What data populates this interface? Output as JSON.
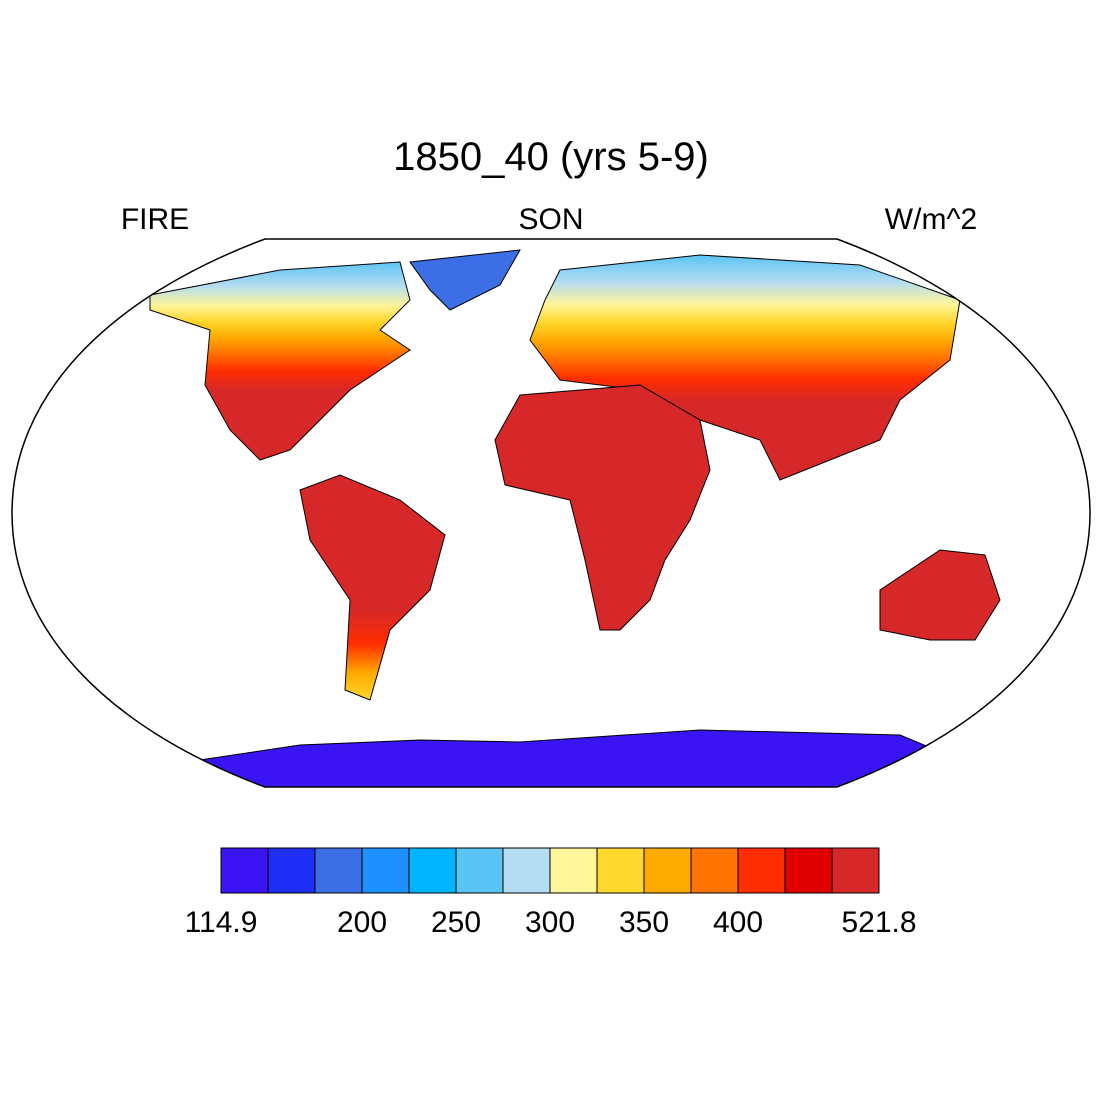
{
  "map": {
    "title": "1850_40 (yrs 5-9)",
    "left_label": "FIRE",
    "center_label": "SON",
    "right_label": "W/m^2",
    "colorbar": {
      "colors": [
        "#3a14f2",
        "#1e2ef2",
        "#3c6ee6",
        "#1e90ff",
        "#00b4ff",
        "#5ac4f4",
        "#b4dcf2",
        "#fff59a",
        "#ffd72d",
        "#ffaa00",
        "#ff7300",
        "#ff2d00",
        "#e10000",
        "#d62828"
      ],
      "labels": [
        114.9,
        200,
        250,
        300,
        350,
        400,
        521.8
      ]
    }
  }
}
